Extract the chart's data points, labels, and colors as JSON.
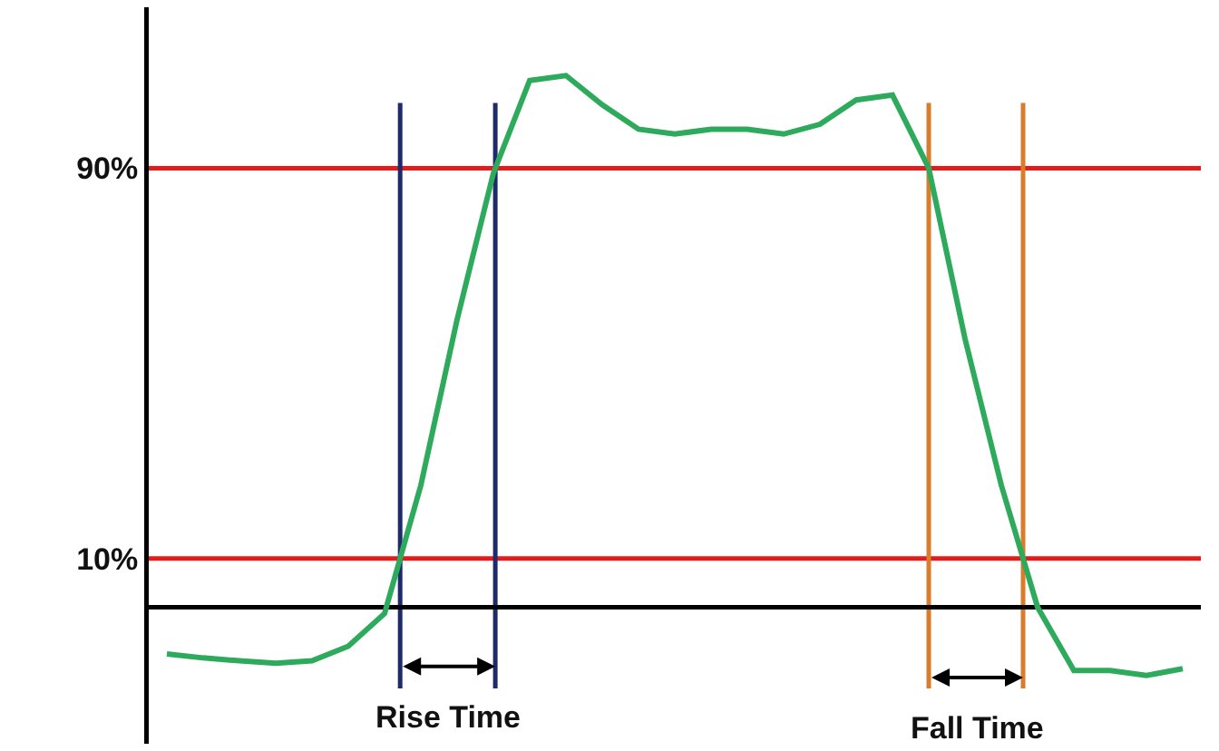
{
  "chart_data": {
    "type": "line",
    "categories": [
      null,
      null,
      null,
      null,
      null,
      null,
      null,
      null,
      null,
      null,
      null,
      null,
      null,
      null,
      null,
      null,
      null,
      null,
      null,
      null,
      null,
      null,
      null,
      null,
      null,
      null,
      null,
      null,
      null
    ],
    "series": [
      {
        "color": "#2eaa5c",
        "values": [
          -9.6,
          -10.4,
          -11,
          -11.5,
          -11,
          -8,
          -1.3,
          25,
          59,
          89,
          108,
          109,
          103,
          98,
          97,
          98,
          98,
          97,
          99,
          104,
          105,
          90,
          55,
          25,
          0,
          -13,
          -13,
          -14,
          -12.6
        ]
      }
    ],
    "ylim": [
      -28,
      123
    ],
    "yticks": [
      {
        "value": 10,
        "label": "10%"
      },
      {
        "value": 90,
        "label": "90%"
      }
    ],
    "tick_labels": "y",
    "grid": false,
    "ref_lines": [
      {
        "axis": "y",
        "value": 90,
        "color": "#e21b1b"
      },
      {
        "axis": "y",
        "value": 10,
        "color": "#e21b1b"
      }
    ],
    "annotations": [
      "Rise Time",
      "Fall Time"
    ]
  }
}
